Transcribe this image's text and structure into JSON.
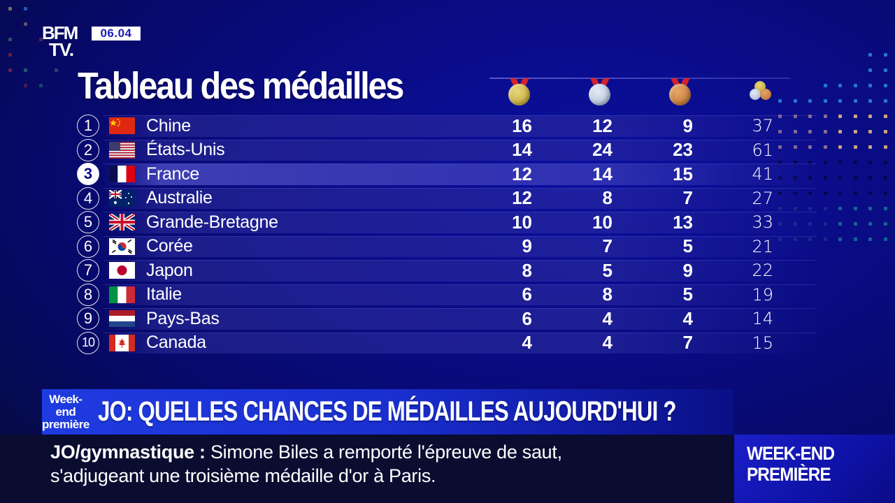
{
  "logo": {
    "line1": "BFM",
    "line2": "TV."
  },
  "clock": "06.04",
  "title": "Tableau des médailles",
  "columns": [
    {
      "icon": "gold-medal-icon",
      "label": "Or"
    },
    {
      "icon": "silver-medal-icon",
      "label": "Argent"
    },
    {
      "icon": "bronze-medal-icon",
      "label": "Bronze"
    },
    {
      "icon": "total-medals-icon",
      "label": "Total"
    }
  ],
  "rows": [
    {
      "rank": "1",
      "country": "Chine",
      "flag": "cn",
      "gold": "16",
      "silver": "12",
      "bronze": "9",
      "total": "37"
    },
    {
      "rank": "2",
      "country": "États-Unis",
      "flag": "us",
      "gold": "14",
      "silver": "24",
      "bronze": "23",
      "total": "61"
    },
    {
      "rank": "3",
      "country": "France",
      "flag": "fr",
      "gold": "12",
      "silver": "14",
      "bronze": "15",
      "total": "41",
      "highlight": true
    },
    {
      "rank": "4",
      "country": "Australie",
      "flag": "au",
      "gold": "12",
      "silver": "8",
      "bronze": "7",
      "total": "27"
    },
    {
      "rank": "5",
      "country": "Grande-Bretagne",
      "flag": "gb",
      "gold": "10",
      "silver": "10",
      "bronze": "13",
      "total": "33"
    },
    {
      "rank": "6",
      "country": "Corée",
      "flag": "kr",
      "gold": "9",
      "silver": "7",
      "bronze": "5",
      "total": "21"
    },
    {
      "rank": "7",
      "country": "Japon",
      "flag": "jp",
      "gold": "8",
      "silver": "5",
      "bronze": "9",
      "total": "22"
    },
    {
      "rank": "8",
      "country": "Italie",
      "flag": "it",
      "gold": "6",
      "silver": "8",
      "bronze": "5",
      "total": "19"
    },
    {
      "rank": "9",
      "country": "Pays-Bas",
      "flag": "nl",
      "gold": "6",
      "silver": "4",
      "bronze": "4",
      "total": "14"
    },
    {
      "rank": "10",
      "country": "Canada",
      "flag": "ca",
      "gold": "4",
      "silver": "4",
      "bronze": "7",
      "total": "15"
    }
  ],
  "banner": {
    "show_line1": "Week-end",
    "show_line2": "première",
    "headline": "JO: QUELLES CHANCES DE MÉDAILLES AUJOURD'HUI ?"
  },
  "ticker": {
    "tag": "JO/gymnastique  :",
    "line1": " Simone Biles a remporté l'épreuve de saut,",
    "line2": "s'adjugeant une troisième médaille d'or à Paris."
  },
  "corner": {
    "line1": "WEEK-END",
    "line2": "PREMIÈRE"
  },
  "colors": {
    "background": "#0a0c86",
    "banner": "#1f3be0",
    "separator": "#e0892c",
    "ticker_bg": "#0a0c30",
    "clock_text": "#1d1db8"
  }
}
